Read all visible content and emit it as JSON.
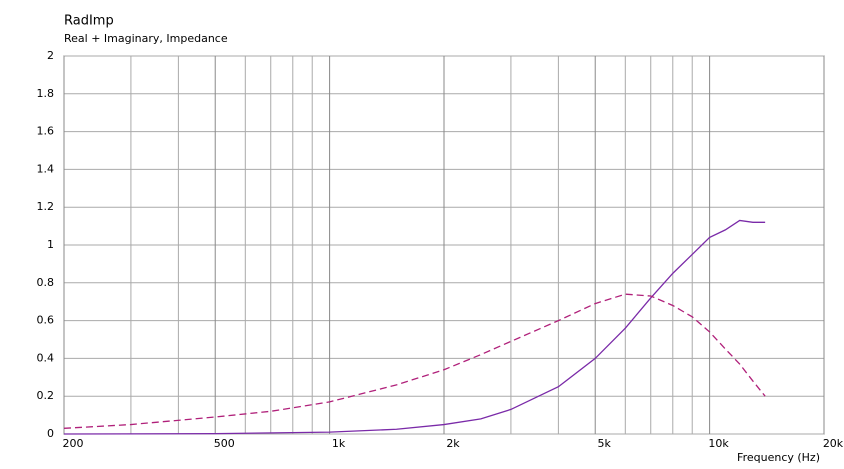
{
  "chart_data": {
    "type": "line",
    "title": "RadImp",
    "subtitle": "Real + Imaginary, Impedance",
    "x_label": "Frequency  (Hz)",
    "x_log": true,
    "grid": true,
    "xlim": [
      200,
      20000
    ],
    "xticks": [
      200,
      500,
      {
        "value": 1000,
        "label": "1k"
      },
      {
        "value": 2000,
        "label": "2k"
      },
      {
        "value": 5000,
        "label": "5k"
      },
      {
        "value": 10000,
        "label": "10k"
      },
      {
        "value": 20000,
        "label": "20k"
      }
    ],
    "xminor_grid": [
      300,
      400,
      600,
      700,
      800,
      900,
      3000,
      4000,
      6000,
      7000,
      8000,
      9000
    ],
    "ylim": [
      0,
      2
    ],
    "yticks": [
      0,
      0.2,
      0.4,
      0.6,
      0.8,
      1,
      1.2,
      1.4,
      1.6,
      1.8,
      2
    ],
    "series": [
      {
        "color": "#7a2aa8",
        "dashed": false,
        "x": [
          200,
          500,
          1000,
          1500,
          2000,
          2500,
          3000,
          4000,
          5000,
          6000,
          7000,
          8000,
          9000,
          10000,
          11000,
          12000,
          13000,
          14000
        ],
        "values": [
          0,
          0.002,
          0.01,
          0.025,
          0.05,
          0.08,
          0.13,
          0.25,
          0.4,
          0.56,
          0.72,
          0.85,
          0.95,
          1.04,
          1.08,
          1.13,
          1.12,
          1.12
        ]
      },
      {
        "color": "#b0207a",
        "dashed": true,
        "x": [
          200,
          300,
          500,
          700,
          1000,
          1500,
          2000,
          2500,
          3000,
          4000,
          5000,
          6000,
          7000,
          8000,
          9000,
          10000,
          11000,
          12000,
          13000,
          14000
        ],
        "values": [
          0.03,
          0.05,
          0.09,
          0.12,
          0.17,
          0.26,
          0.34,
          0.42,
          0.49,
          0.6,
          0.69,
          0.74,
          0.73,
          0.68,
          0.62,
          0.54,
          0.45,
          0.37,
          0.28,
          0.2
        ]
      }
    ]
  }
}
